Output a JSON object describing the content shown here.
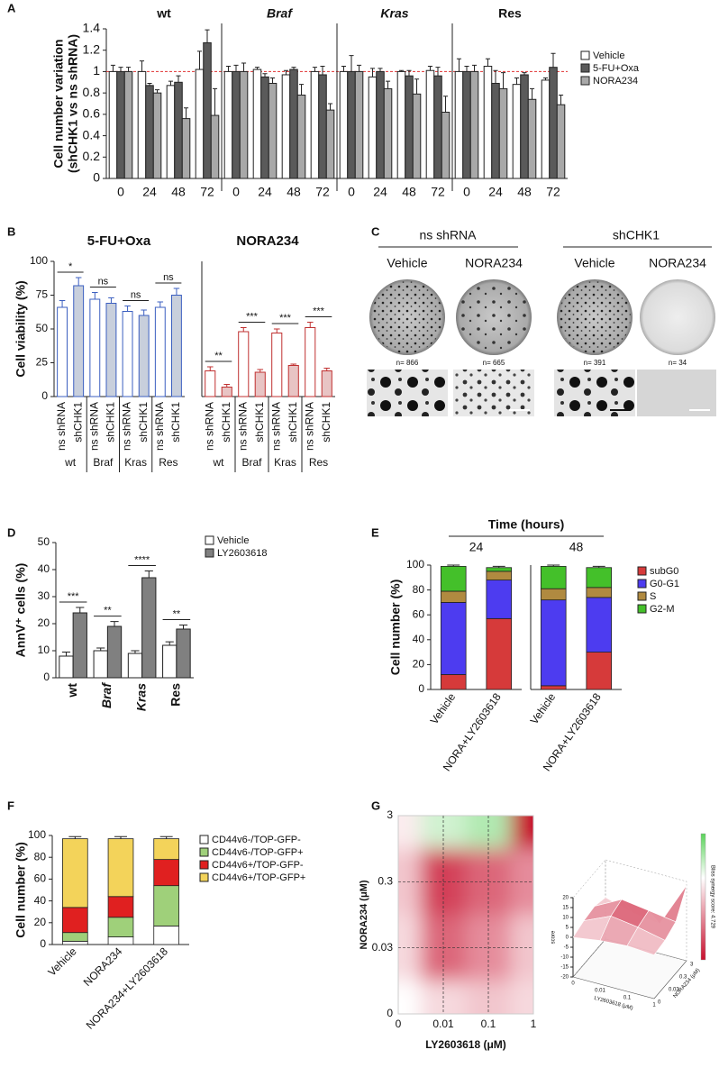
{
  "panel_labels": [
    "A",
    "B",
    "C",
    "D",
    "E",
    "F",
    "G"
  ],
  "panel_c": {
    "groups": [
      "ns shRNA",
      "shCHK1"
    ],
    "conditions": [
      "Vehicle",
      "NORA234",
      "Vehicle",
      "NORA234"
    ],
    "counts": [
      "n= 866",
      "n= 665",
      "n= 391",
      "n= 34"
    ]
  },
  "chart_data": [
    {
      "type": "bar",
      "groups": [
        "wt",
        "Braf",
        "Kras",
        "Res"
      ],
      "categories": [
        "0",
        "24",
        "48",
        "72",
        "0",
        "24",
        "48",
        "72",
        "0",
        "24",
        "48",
        "72",
        "0",
        "24",
        "48",
        "72"
      ],
      "y_label": [
        "Cell number variation",
        "(shCHK1 vs ns shRNA)"
      ],
      "ylim": [
        0,
        1.4
      ],
      "yticks": [
        0,
        0.2,
        0.4,
        0.6,
        0.8,
        1,
        1.2,
        1.4
      ],
      "reference_line": 1,
      "reference_color": "#e03030",
      "series": [
        {
          "name": "Vehicle",
          "color": "#ffffff",
          "values": [
            1,
            1,
            0.87,
            1.02,
            1,
            1.02,
            0.97,
            1,
            1,
            0.95,
            1,
            1.01,
            1,
            1.05,
            0.88,
            0.92
          ],
          "errors": [
            0.06,
            0.1,
            0.04,
            0.17,
            0.05,
            0.02,
            0.04,
            0.04,
            0.05,
            0.08,
            0.01,
            0.04,
            0.12,
            0.07,
            0.06,
            0.02
          ]
        },
        {
          "name": "5-FU+Oxa",
          "color": "#5a5a5a",
          "values": [
            1,
            0.87,
            0.9,
            1.27,
            1,
            0.95,
            1.02,
            0.97,
            1,
            1,
            0.96,
            0.96,
            1,
            0.89,
            0.97,
            1.04
          ],
          "errors": [
            0.04,
            0.02,
            0.06,
            0.12,
            0.06,
            0.03,
            0.02,
            0.08,
            0.15,
            0.03,
            0.05,
            0.08,
            0.05,
            0.12,
            0.02,
            0.13
          ]
        },
        {
          "name": "NORA234",
          "color": "#a8a8a8",
          "values": [
            1,
            0.8,
            0.56,
            0.59,
            1,
            0.89,
            0.78,
            0.64,
            1,
            0.84,
            0.79,
            0.62,
            1,
            0.84,
            0.74,
            0.69
          ],
          "errors": [
            0.04,
            0.03,
            0.1,
            0.25,
            0.08,
            0.05,
            0.1,
            0.06,
            0.06,
            0.07,
            0.14,
            0.15,
            0.06,
            0.15,
            0.1,
            0.09
          ]
        }
      ]
    },
    {
      "type": "bar",
      "title": "5-FU+Oxa",
      "title_color": "#3b5fc0",
      "groups": [
        "wt",
        "Braf",
        "Kras",
        "Res"
      ],
      "categories": [
        "ns shRNA",
        "shCHK1",
        "ns shRNA",
        "shCHK1",
        "ns shRNA",
        "shCHK1",
        "ns shRNA",
        "shCHK1"
      ],
      "values": [
        66,
        82,
        72,
        69,
        63,
        60,
        66,
        75
      ],
      "errors": [
        5,
        6,
        5,
        4,
        4,
        4,
        4,
        5
      ],
      "bar_colors": [
        "#ffffff",
        "#c8cfdc",
        "#ffffff",
        "#c8cfdc",
        "#ffffff",
        "#c8cfdc",
        "#ffffff",
        "#c8cfdc"
      ],
      "edge_color": "#3b5fc0",
      "significance": [
        "*",
        "ns",
        "ns",
        "ns"
      ],
      "y_label": "Cell viability (%)",
      "ylim": [
        0,
        100
      ],
      "yticks": [
        0,
        25,
        50,
        75,
        100
      ]
    },
    {
      "type": "bar",
      "title": "NORA234",
      "title_color": "#b02020",
      "groups": [
        "wt",
        "Braf",
        "Kras",
        "Res"
      ],
      "categories": [
        "ns shRNA",
        "shCHK1",
        "ns shRNA",
        "shCHK1",
        "ns shRNA",
        "shCHK1",
        "ns shRNA",
        "shCHK1"
      ],
      "values": [
        19,
        7,
        48,
        18,
        47,
        23,
        51,
        19
      ],
      "errors": [
        3,
        2,
        3,
        2,
        3,
        1,
        4,
        2
      ],
      "bar_colors": [
        "#ffffff",
        "#e8c4c4",
        "#ffffff",
        "#e8c4c4",
        "#ffffff",
        "#e8c4c4",
        "#ffffff",
        "#e8c4c4"
      ],
      "edge_color": "#c03030",
      "significance": [
        "**",
        "***",
        "***",
        "***"
      ],
      "ylim": [
        0,
        100
      ]
    },
    {
      "type": "bar",
      "categories": [
        "wt",
        "Braf",
        "Kras",
        "Res"
      ],
      "series": [
        {
          "name": "Vehicle",
          "color": "#ffffff",
          "values": [
            8,
            10,
            9,
            12
          ],
          "errors": [
            1.5,
            1,
            1,
            1.3
          ]
        },
        {
          "name": "LY2603618",
          "color": "#808080",
          "values": [
            24,
            19,
            37,
            18
          ],
          "errors": [
            2,
            1.8,
            2.5,
            1.5
          ]
        }
      ],
      "significance": [
        "***",
        "**",
        "****",
        "**"
      ],
      "y_label": "AnnV⁺ cells (%)",
      "ylim": [
        0,
        50
      ],
      "yticks": [
        0,
        10,
        20,
        30,
        40,
        50
      ]
    },
    {
      "type": "stacked_bar",
      "super_title": "Time (hours)",
      "groups": [
        "24",
        "48"
      ],
      "categories": [
        "Vehicle",
        "NORA+LY2603618",
        "Vehicle",
        "NORA+LY2603618"
      ],
      "series": [
        {
          "name": "subG0",
          "color": "#d63a3a",
          "values": [
            12,
            57,
            3,
            30
          ],
          "errors": [
            1,
            3,
            1,
            2
          ]
        },
        {
          "name": "G0-G1",
          "color": "#4d3cf0",
          "values": [
            58,
            31,
            69,
            44
          ],
          "errors": [
            2,
            3,
            1,
            2
          ]
        },
        {
          "name": "S",
          "color": "#b08a40",
          "values": [
            9,
            7,
            9,
            8
          ],
          "errors": [
            3,
            1,
            3,
            2
          ]
        },
        {
          "name": "G2-M",
          "color": "#44c02a",
          "values": [
            20,
            3,
            18,
            16
          ],
          "errors": [
            1,
            1,
            1,
            1
          ]
        }
      ],
      "y_label": "Cell number (%)",
      "ylim": [
        0,
        100
      ],
      "yticks": [
        0,
        20,
        40,
        60,
        80,
        100
      ]
    },
    {
      "type": "stacked_bar",
      "categories": [
        "Vehicle",
        "NORA234",
        "NORA234+LY2603618"
      ],
      "series": [
        {
          "name": "CD44v6-/TOP-GFP-",
          "color": "#ffffff",
          "values": [
            3,
            7,
            17
          ],
          "errors": [
            1,
            2,
            2
          ]
        },
        {
          "name": "CD44v6-/TOP-GFP+",
          "color": "#9fd07a",
          "values": [
            8,
            18,
            37
          ],
          "errors": [
            3,
            3,
            3
          ]
        },
        {
          "name": "CD44v6+/TOP-GFP-",
          "color": "#e02020",
          "values": [
            23,
            19,
            24
          ],
          "errors": [
            3,
            3,
            4
          ]
        },
        {
          "name": "CD44v6+/TOP-GFP+",
          "color": "#f3d35a",
          "values": [
            63,
            53,
            19
          ],
          "errors": [
            2,
            2,
            2
          ]
        }
      ],
      "y_label": "Cell number (%)",
      "ylim": [
        0,
        100
      ],
      "yticks": [
        0,
        20,
        40,
        60,
        80,
        100
      ]
    },
    {
      "type": "heatmap",
      "x": [
        "0",
        "0.01",
        "0.1",
        "1"
      ],
      "y": [
        "0",
        "0.03",
        "0.3",
        "3"
      ],
      "z": [
        [
          0,
          2,
          3,
          2
        ],
        [
          2,
          8,
          6,
          3
        ],
        [
          3,
          10,
          8,
          6
        ],
        [
          1,
          -3,
          -5,
          18
        ]
      ],
      "x_label": "LY2603618 (μM)",
      "y_label": "NORA234 (μM)",
      "zlim": [
        -20,
        20
      ],
      "zticks": [
        -20,
        -15,
        -10,
        -5,
        0,
        5,
        10,
        15,
        20
      ],
      "z_label": "score",
      "colorbar_label": "Bliss synergy score: 4.729"
    }
  ]
}
